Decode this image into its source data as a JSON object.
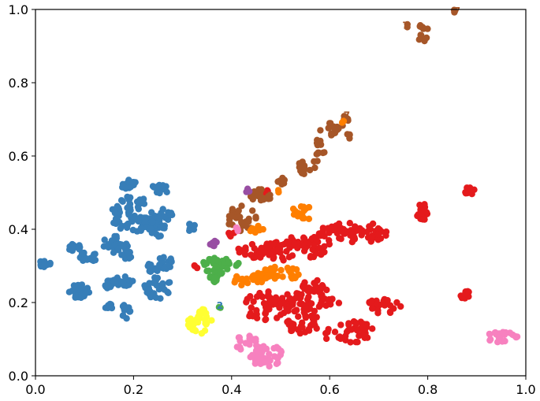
{
  "chart_data": {
    "type": "scatter",
    "title": "",
    "xlabel": "",
    "ylabel": "",
    "xlim": [
      0.0,
      1.0
    ],
    "ylim": [
      0.0,
      1.0
    ],
    "grid": false,
    "legend": "none",
    "x_ticks": [
      "0.0",
      "0.2",
      "0.4",
      "0.6",
      "0.8",
      "1.0"
    ],
    "y_ticks": [
      "0.0",
      "0.2",
      "0.4",
      "0.6",
      "0.8",
      "1.0"
    ],
    "series": [
      {
        "color": "#377eb8",
        "clusters": [
          {
            "x": 0.02,
            "y": 0.305,
            "rx": 0.012,
            "ry": 0.012,
            "n": 14
          },
          {
            "x": 0.08,
            "y": 0.35,
            "rx": 0.012,
            "ry": 0.012,
            "n": 14
          },
          {
            "x": 0.11,
            "y": 0.325,
            "rx": 0.02,
            "ry": 0.015,
            "n": 20
          },
          {
            "x": 0.09,
            "y": 0.23,
            "rx": 0.022,
            "ry": 0.02,
            "n": 24
          },
          {
            "x": 0.19,
            "y": 0.52,
            "rx": 0.018,
            "ry": 0.015,
            "n": 18
          },
          {
            "x": 0.255,
            "y": 0.51,
            "rx": 0.02,
            "ry": 0.012,
            "n": 18
          },
          {
            "x": 0.2,
            "y": 0.44,
            "rx": 0.05,
            "ry": 0.05,
            "n": 70
          },
          {
            "x": 0.165,
            "y": 0.36,
            "rx": 0.03,
            "ry": 0.025,
            "n": 30
          },
          {
            "x": 0.25,
            "y": 0.41,
            "rx": 0.02,
            "ry": 0.03,
            "n": 24
          },
          {
            "x": 0.265,
            "y": 0.44,
            "rx": 0.015,
            "ry": 0.025,
            "n": 14
          },
          {
            "x": 0.318,
            "y": 0.405,
            "rx": 0.01,
            "ry": 0.01,
            "n": 10
          },
          {
            "x": 0.265,
            "y": 0.31,
            "rx": 0.015,
            "ry": 0.02,
            "n": 14
          },
          {
            "x": 0.18,
            "y": 0.26,
            "rx": 0.02,
            "ry": 0.015,
            "n": 18
          },
          {
            "x": 0.15,
            "y": 0.25,
            "rx": 0.015,
            "ry": 0.012,
            "n": 12
          },
          {
            "x": 0.25,
            "y": 0.24,
            "rx": 0.03,
            "ry": 0.03,
            "n": 30
          },
          {
            "x": 0.24,
            "y": 0.295,
            "rx": 0.012,
            "ry": 0.015,
            "n": 10
          },
          {
            "x": 0.185,
            "y": 0.33,
            "rx": 0.012,
            "ry": 0.012,
            "n": 10
          },
          {
            "x": 0.185,
            "y": 0.175,
            "rx": 0.01,
            "ry": 0.02,
            "n": 12
          },
          {
            "x": 0.15,
            "y": 0.19,
            "rx": 0.01,
            "ry": 0.012,
            "n": 8
          }
        ]
      },
      {
        "color": "#e41a1c",
        "clusters": [
          {
            "x": 0.5,
            "y": 0.34,
            "rx": 0.09,
            "ry": 0.025,
            "n": 70
          },
          {
            "x": 0.65,
            "y": 0.39,
            "rx": 0.075,
            "ry": 0.03,
            "n": 60
          },
          {
            "x": 0.56,
            "y": 0.365,
            "rx": 0.05,
            "ry": 0.02,
            "n": 30
          },
          {
            "x": 0.55,
            "y": 0.2,
            "rx": 0.07,
            "ry": 0.03,
            "n": 60
          },
          {
            "x": 0.47,
            "y": 0.19,
            "rx": 0.05,
            "ry": 0.04,
            "n": 40
          },
          {
            "x": 0.57,
            "y": 0.245,
            "rx": 0.03,
            "ry": 0.02,
            "n": 20
          },
          {
            "x": 0.64,
            "y": 0.12,
            "rx": 0.06,
            "ry": 0.03,
            "n": 45
          },
          {
            "x": 0.55,
            "y": 0.14,
            "rx": 0.04,
            "ry": 0.025,
            "n": 30
          },
          {
            "x": 0.71,
            "y": 0.19,
            "rx": 0.035,
            "ry": 0.02,
            "n": 24
          },
          {
            "x": 0.79,
            "y": 0.445,
            "rx": 0.012,
            "ry": 0.025,
            "n": 18
          },
          {
            "x": 0.885,
            "y": 0.505,
            "rx": 0.01,
            "ry": 0.012,
            "n": 10
          },
          {
            "x": 0.88,
            "y": 0.22,
            "rx": 0.015,
            "ry": 0.012,
            "n": 12
          },
          {
            "x": 0.4,
            "y": 0.385,
            "rx": 0.008,
            "ry": 0.008,
            "n": 5
          },
          {
            "x": 0.47,
            "y": 0.5,
            "rx": 0.007,
            "ry": 0.007,
            "n": 4
          },
          {
            "x": 0.33,
            "y": 0.3,
            "rx": 0.006,
            "ry": 0.006,
            "n": 3
          }
        ]
      },
      {
        "color": "#a65628",
        "clusters": [
          {
            "x": 0.42,
            "y": 0.43,
            "rx": 0.03,
            "ry": 0.035,
            "n": 30
          },
          {
            "x": 0.46,
            "y": 0.49,
            "rx": 0.025,
            "ry": 0.02,
            "n": 20
          },
          {
            "x": 0.5,
            "y": 0.53,
            "rx": 0.01,
            "ry": 0.012,
            "n": 8
          },
          {
            "x": 0.545,
            "y": 0.565,
            "rx": 0.015,
            "ry": 0.02,
            "n": 12
          },
          {
            "x": 0.575,
            "y": 0.605,
            "rx": 0.015,
            "ry": 0.04,
            "n": 16
          },
          {
            "x": 0.6,
            "y": 0.67,
            "rx": 0.02,
            "ry": 0.02,
            "n": 14
          },
          {
            "x": 0.63,
            "y": 0.69,
            "rx": 0.01,
            "ry": 0.02,
            "n": 8
          },
          {
            "x": 0.64,
            "y": 0.655,
            "rx": 0.006,
            "ry": 0.008,
            "n": 4
          },
          {
            "x": 0.79,
            "y": 0.93,
            "rx": 0.012,
            "ry": 0.03,
            "n": 14
          },
          {
            "x": 0.855,
            "y": 0.995,
            "rx": 0.004,
            "ry": 0.004,
            "n": 2
          },
          {
            "x": 0.76,
            "y": 0.955,
            "rx": 0.005,
            "ry": 0.005,
            "n": 2
          }
        ]
      },
      {
        "color": "#ff7f00",
        "clusters": [
          {
            "x": 0.5,
            "y": 0.28,
            "rx": 0.04,
            "ry": 0.02,
            "n": 30
          },
          {
            "x": 0.455,
            "y": 0.27,
            "rx": 0.02,
            "ry": 0.02,
            "n": 14
          },
          {
            "x": 0.42,
            "y": 0.26,
            "rx": 0.015,
            "ry": 0.015,
            "n": 10
          },
          {
            "x": 0.545,
            "y": 0.445,
            "rx": 0.025,
            "ry": 0.02,
            "n": 16
          },
          {
            "x": 0.45,
            "y": 0.4,
            "rx": 0.015,
            "ry": 0.01,
            "n": 10
          },
          {
            "x": 0.495,
            "y": 0.505,
            "rx": 0.005,
            "ry": 0.005,
            "n": 2
          },
          {
            "x": 0.625,
            "y": 0.695,
            "rx": 0.004,
            "ry": 0.004,
            "n": 2
          }
        ]
      },
      {
        "color": "#4daf4a",
        "clusters": [
          {
            "x": 0.37,
            "y": 0.3,
            "rx": 0.03,
            "ry": 0.025,
            "n": 36
          },
          {
            "x": 0.365,
            "y": 0.265,
            "rx": 0.012,
            "ry": 0.012,
            "n": 8
          },
          {
            "x": 0.41,
            "y": 0.305,
            "rx": 0.008,
            "ry": 0.008,
            "n": 4
          },
          {
            "x": 0.375,
            "y": 0.185,
            "rx": 0.003,
            "ry": 0.003,
            "n": 2
          }
        ]
      },
      {
        "color": "#ffff33",
        "clusters": [
          {
            "x": 0.335,
            "y": 0.15,
            "rx": 0.025,
            "ry": 0.035,
            "n": 30
          }
        ]
      },
      {
        "color": "#f781bf",
        "clusters": [
          {
            "x": 0.47,
            "y": 0.055,
            "rx": 0.035,
            "ry": 0.03,
            "n": 36
          },
          {
            "x": 0.43,
            "y": 0.09,
            "rx": 0.025,
            "ry": 0.02,
            "n": 16
          },
          {
            "x": 0.95,
            "y": 0.105,
            "rx": 0.035,
            "ry": 0.015,
            "n": 24
          },
          {
            "x": 0.41,
            "y": 0.4,
            "rx": 0.006,
            "ry": 0.006,
            "n": 3
          }
        ]
      },
      {
        "color": "#984ea3",
        "clusters": [
          {
            "x": 0.365,
            "y": 0.36,
            "rx": 0.01,
            "ry": 0.008,
            "n": 8
          },
          {
            "x": 0.435,
            "y": 0.505,
            "rx": 0.006,
            "ry": 0.006,
            "n": 3
          }
        ]
      }
    ],
    "annotations": [
      {
        "text": "7",
        "x": 0.755,
        "y": 0.955,
        "color": "#a65628"
      },
      {
        "text": "7",
        "x": 0.86,
        "y": 0.995,
        "color": "#a65628"
      },
      {
        "text": "7",
        "x": 0.635,
        "y": 0.71,
        "color": "#a65628"
      },
      {
        "text": "2",
        "x": 0.376,
        "y": 0.19,
        "color": "#377eb8"
      }
    ]
  }
}
